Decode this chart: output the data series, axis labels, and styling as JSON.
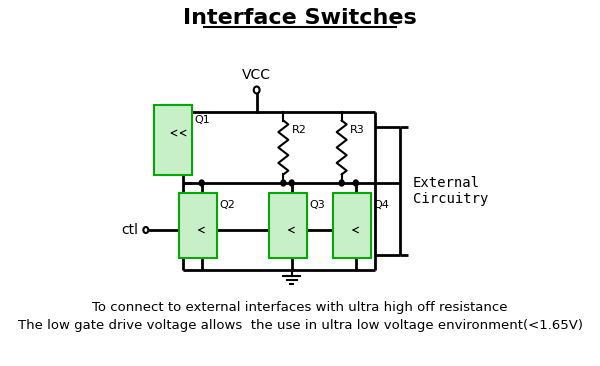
{
  "title": "Interface Switches",
  "title_fontsize": 16,
  "bg_color": "#ffffff",
  "line_color": "#000000",
  "green_box_color": "#c8f0c8",
  "green_box_edge": "#00aa00",
  "text_vcc": "VCC",
  "text_ctl": "ctl",
  "text_q1": "Q1",
  "text_q2": "Q2",
  "text_q3": "Q3",
  "text_q4": "Q4",
  "text_r2": "R2",
  "text_r3": "R3",
  "text_ext": "External\nCircuitry",
  "footnote1": "To connect to external interfaces with ultra high off resistance",
  "footnote2": "The low gate drive voltage allows  the use in ultra low voltage environment(<1.65V)",
  "footnote_fontsize": 9.5,
  "label_fontsize": 8
}
